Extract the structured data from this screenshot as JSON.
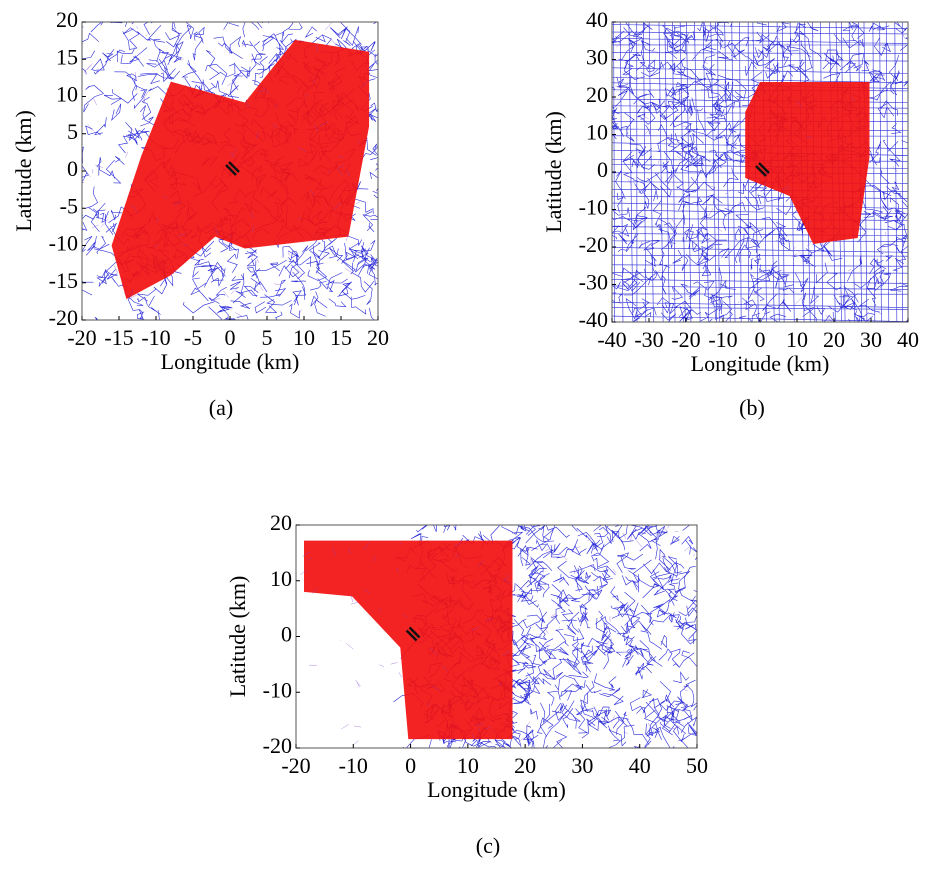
{
  "chart_data": [
    {
      "type": "map",
      "xlabel": "Longitude (km)",
      "ylabel": "Latitude (km)",
      "caption": "(a)",
      "xlim": [
        -20,
        20
      ],
      "ylim": [
        -20,
        20
      ],
      "xticks": [
        -20,
        -15,
        -10,
        -5,
        0,
        5,
        10,
        15,
        20
      ],
      "yticks": [
        -20,
        -15,
        -10,
        -5,
        0,
        5,
        10,
        15,
        20
      ]
    },
    {
      "type": "map",
      "xlabel": "Longitude (km)",
      "ylabel": "Latitude (km)",
      "caption": "(b)",
      "xlim": [
        -40,
        40
      ],
      "ylim": [
        -40,
        40
      ],
      "xticks": [
        -40,
        -30,
        -20,
        -10,
        0,
        10,
        20,
        30,
        40
      ],
      "yticks": [
        -40,
        -30,
        -20,
        -10,
        0,
        10,
        20,
        30,
        40
      ]
    },
    {
      "type": "map",
      "xlabel": "Longitude (km)",
      "ylabel": "Latitude (km)",
      "caption": "(c)",
      "xlim": [
        -20,
        50
      ],
      "ylim": [
        -20,
        20
      ],
      "xticks": [
        -20,
        -10,
        0,
        10,
        20,
        30,
        40,
        50
      ],
      "yticks": [
        -20,
        -10,
        0,
        10,
        20
      ]
    }
  ]
}
